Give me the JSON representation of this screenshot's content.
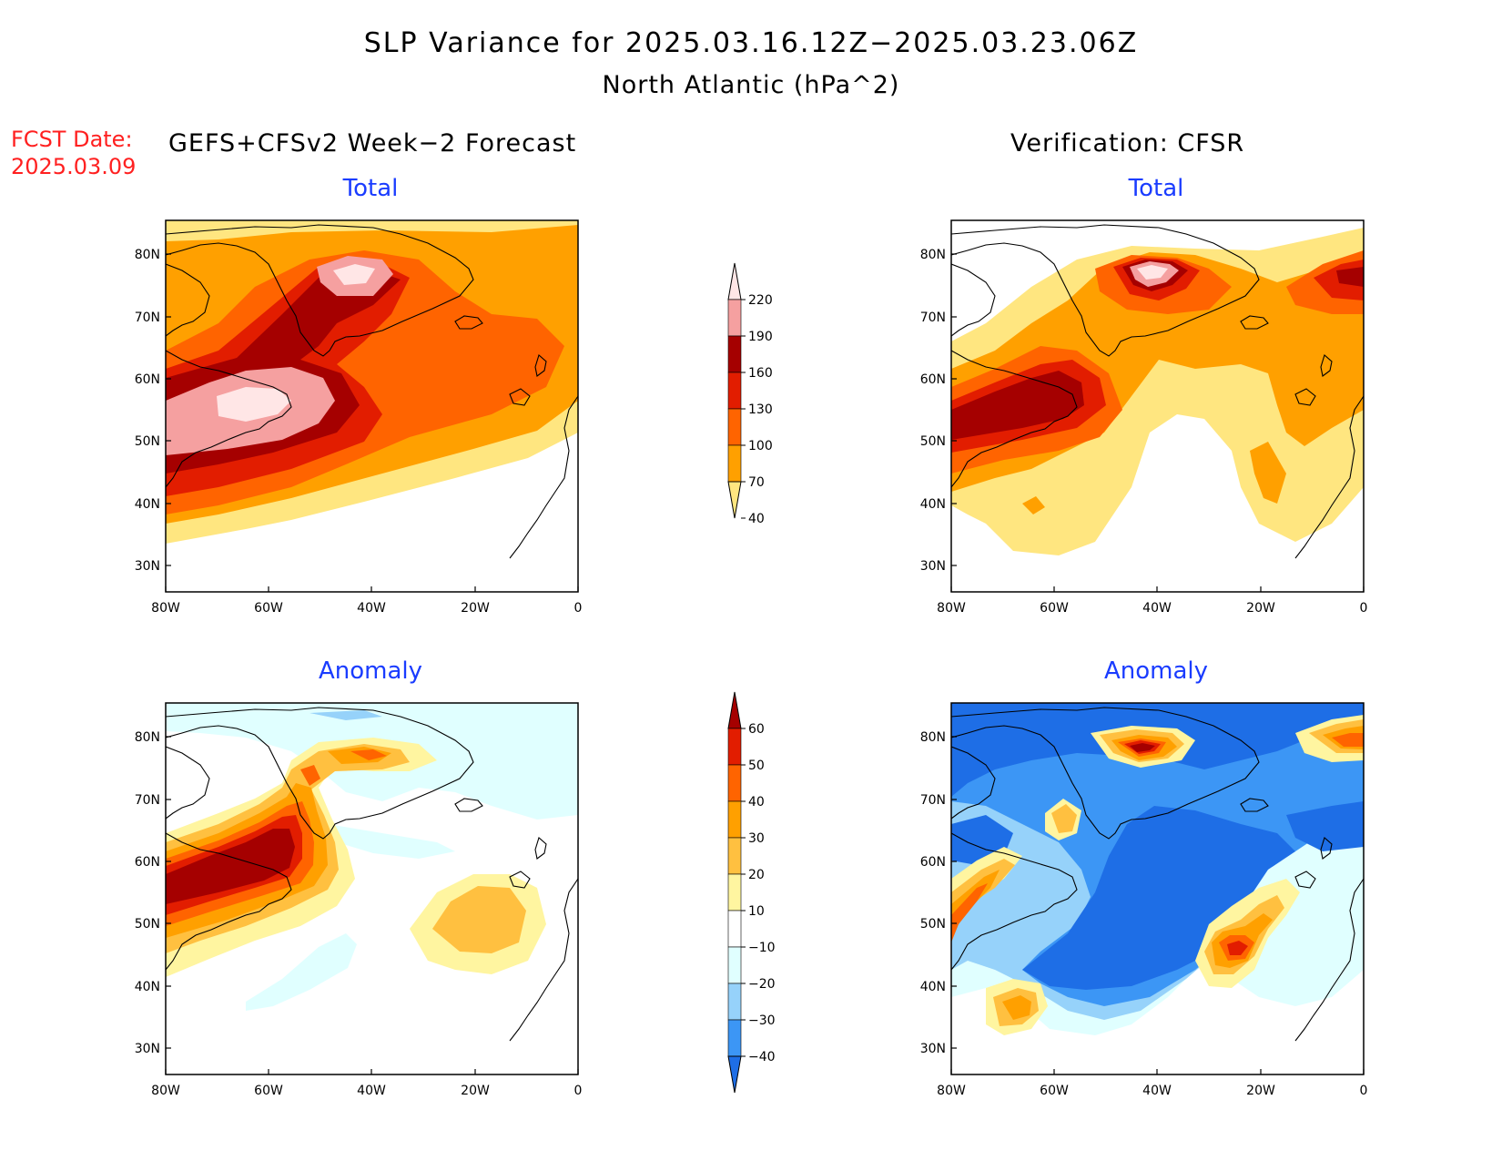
{
  "header": {
    "title": "SLP Variance for 2025.03.16.12Z−2025.03.23.06Z",
    "subtitle": "North Atlantic (hPa^2)"
  },
  "fcst": {
    "label": "FCST Date:",
    "date": "2025.03.09"
  },
  "columns": {
    "left": "GEFS+CFSv2 Week−2 Forecast",
    "right": "Verification: CFSR"
  },
  "panels": {
    "tl": {
      "title": "Total"
    },
    "tr": {
      "title": "Total"
    },
    "bl": {
      "title": "Anomaly"
    },
    "br": {
      "title": "Anomaly"
    }
  },
  "axes": {
    "lat_labels": [
      "80N",
      "70N",
      "60N",
      "50N",
      "40N",
      "30N"
    ],
    "lon_labels": [
      "80W",
      "60W",
      "40W",
      "20W",
      "0"
    ]
  },
  "colorbars": {
    "total": {
      "labels": [
        "220",
        "190",
        "160",
        "130",
        "100",
        "70",
        "40"
      ],
      "colors": [
        "#ffe6e6",
        "#f5a0a0",
        "#a50000",
        "#e21d00",
        "#ff6400",
        "#ffa000",
        "#ffe680"
      ]
    },
    "anomaly": {
      "labels": [
        "60",
        "50",
        "40",
        "30",
        "20",
        "10",
        "−10",
        "−20",
        "−30",
        "−40"
      ],
      "colors": [
        "#a50000",
        "#e21d00",
        "#ff6400",
        "#ffa000",
        "#ffc040",
        "#fff5a0",
        "#ffffff",
        "#e0ffff",
        "#96d2fa",
        "#3c96f5",
        "#1e6ee6"
      ]
    }
  },
  "fills": {
    "c40": "#ffe680",
    "c70": "#ffa000",
    "c100": "#ff6400",
    "c130": "#e21d00",
    "c160": "#a50000",
    "c190": "#f5a0a0",
    "c220": "#ffe6e6",
    "a10": "#fff5a0",
    "a20": "#ffc040",
    "a30": "#ffa000",
    "a40": "#ff6400",
    "a50": "#e21d00",
    "a60": "#a50000",
    "n10": "#e0ffff",
    "n20": "#96d2fa",
    "n30": "#3c96f5",
    "n40": "#1e6ee6"
  }
}
